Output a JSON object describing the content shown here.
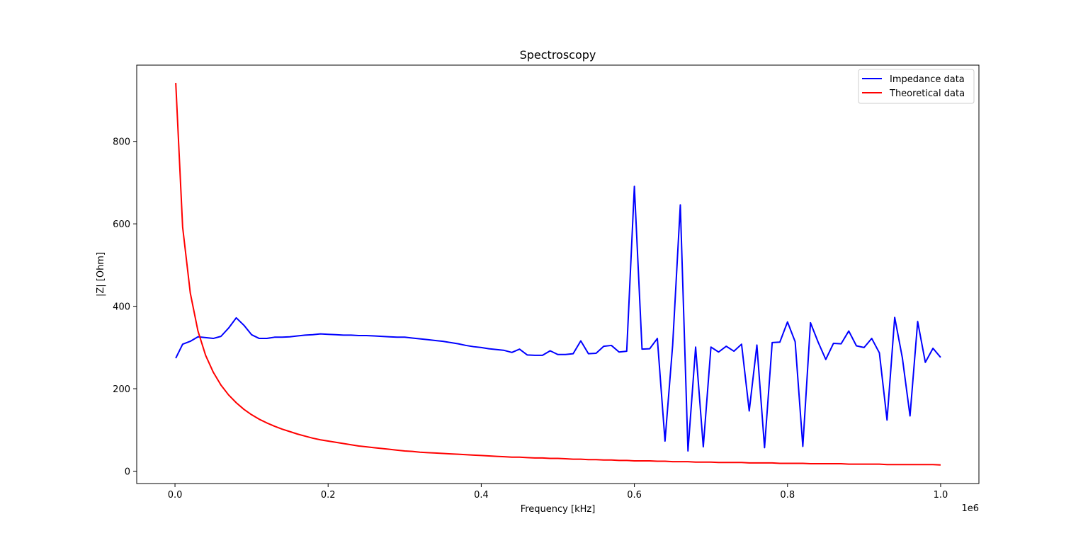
{
  "chart_data": {
    "type": "line",
    "title": "Spectroscopy",
    "xlabel": "Frequency [kHz]",
    "ylabel": "|Z| [Ohm]",
    "x_offset_label": "1e6",
    "xlim": [
      -50000,
      1050000
    ],
    "ylim": [
      -30,
      985
    ],
    "x_ticks": [
      0,
      200000,
      400000,
      600000,
      800000,
      1000000
    ],
    "x_tick_labels": [
      "0.0",
      "0.2",
      "0.4",
      "0.6",
      "0.8",
      "1.0"
    ],
    "y_ticks": [
      0,
      200,
      400,
      600,
      800
    ],
    "y_tick_labels": [
      "0",
      "200",
      "400",
      "600",
      "800"
    ],
    "grid": false,
    "legend_position": "top-right",
    "series": [
      {
        "name": "Impedance data",
        "color": "#0000ff",
        "x": [
          1000,
          10000,
          20000,
          30000,
          40000,
          50000,
          60000,
          70000,
          80000,
          90000,
          100000,
          110000,
          120000,
          130000,
          140000,
          150000,
          160000,
          170000,
          180000,
          190000,
          200000,
          210000,
          220000,
          230000,
          240000,
          250000,
          260000,
          270000,
          280000,
          290000,
          300000,
          310000,
          320000,
          330000,
          340000,
          350000,
          360000,
          370000,
          380000,
          390000,
          400000,
          410000,
          420000,
          430000,
          440000,
          450000,
          460000,
          470000,
          480000,
          490000,
          500000,
          510000,
          520000,
          530000,
          540000,
          550000,
          560000,
          570000,
          580000,
          590000,
          600000,
          610000,
          620000,
          630000,
          640000,
          650000,
          660000,
          670000,
          680000,
          690000,
          700000,
          710000,
          720000,
          730000,
          740000,
          750000,
          760000,
          770000,
          780000,
          790000,
          800000,
          810000,
          820000,
          830000,
          840000,
          850000,
          860000,
          870000,
          880000,
          890000,
          900000,
          910000,
          920000,
          930000,
          940000,
          950000,
          960000,
          970000,
          980000,
          990000,
          1000000
        ],
        "y": [
          274,
          308,
          315,
          326,
          324,
          322,
          327,
          347,
          372,
          354,
          331,
          322,
          322,
          325,
          325,
          326,
          328,
          330,
          331,
          333,
          332,
          331,
          330,
          330,
          329,
          329,
          328,
          327,
          326,
          325,
          325,
          323,
          321,
          319,
          317,
          315,
          312,
          309,
          305,
          302,
          300,
          297,
          295,
          293,
          288,
          296,
          282,
          281,
          281,
          292,
          283,
          283,
          285,
          316,
          285,
          286,
          303,
          305,
          289,
          291,
          691,
          296,
          297,
          322,
          73,
          306,
          646,
          49,
          301,
          59,
          301,
          289,
          303,
          291,
          308,
          146,
          306,
          57,
          312,
          313,
          362,
          314,
          60,
          360,
          313,
          271,
          310,
          309,
          340,
          304,
          300,
          322,
          287,
          124,
          373,
          275,
          134,
          363,
          264,
          298,
          276
        ]
      },
      {
        "name": "Theoretical data",
        "color": "#ff0000",
        "x": [
          1000,
          10000,
          20000,
          30000,
          40000,
          50000,
          60000,
          70000,
          80000,
          90000,
          100000,
          110000,
          120000,
          130000,
          140000,
          150000,
          160000,
          170000,
          180000,
          190000,
          200000,
          210000,
          220000,
          230000,
          240000,
          250000,
          260000,
          270000,
          280000,
          290000,
          300000,
          310000,
          320000,
          330000,
          340000,
          350000,
          360000,
          370000,
          380000,
          390000,
          400000,
          410000,
          420000,
          430000,
          440000,
          450000,
          460000,
          470000,
          480000,
          490000,
          500000,
          510000,
          520000,
          530000,
          540000,
          550000,
          560000,
          570000,
          580000,
          590000,
          600000,
          610000,
          620000,
          630000,
          640000,
          650000,
          660000,
          670000,
          680000,
          690000,
          700000,
          710000,
          720000,
          730000,
          740000,
          750000,
          760000,
          770000,
          780000,
          790000,
          800000,
          810000,
          820000,
          830000,
          840000,
          850000,
          860000,
          870000,
          880000,
          890000,
          900000,
          910000,
          920000,
          930000,
          940000,
          950000,
          960000,
          970000,
          980000,
          990000,
          1000000
        ],
        "y": [
          942,
          592,
          432,
          340,
          281,
          240,
          209,
          185,
          166,
          150,
          137,
          126,
          117,
          109,
          102,
          96,
          90,
          85,
          80,
          76,
          73,
          70,
          67,
          64,
          61,
          59,
          57,
          55,
          53,
          51,
          49,
          48,
          46,
          45,
          44,
          43,
          42,
          41,
          40,
          39,
          38,
          37,
          36,
          35,
          34,
          34,
          33,
          32,
          32,
          31,
          31,
          30,
          29,
          29,
          28,
          28,
          27,
          27,
          26,
          26,
          25,
          25,
          25,
          24,
          24,
          23,
          23,
          23,
          22,
          22,
          22,
          21,
          21,
          21,
          21,
          20,
          20,
          20,
          20,
          19,
          19,
          19,
          19,
          18,
          18,
          18,
          18,
          18,
          17,
          17,
          17,
          17,
          17,
          16,
          16,
          16,
          16,
          16,
          16,
          16,
          15
        ]
      }
    ]
  }
}
